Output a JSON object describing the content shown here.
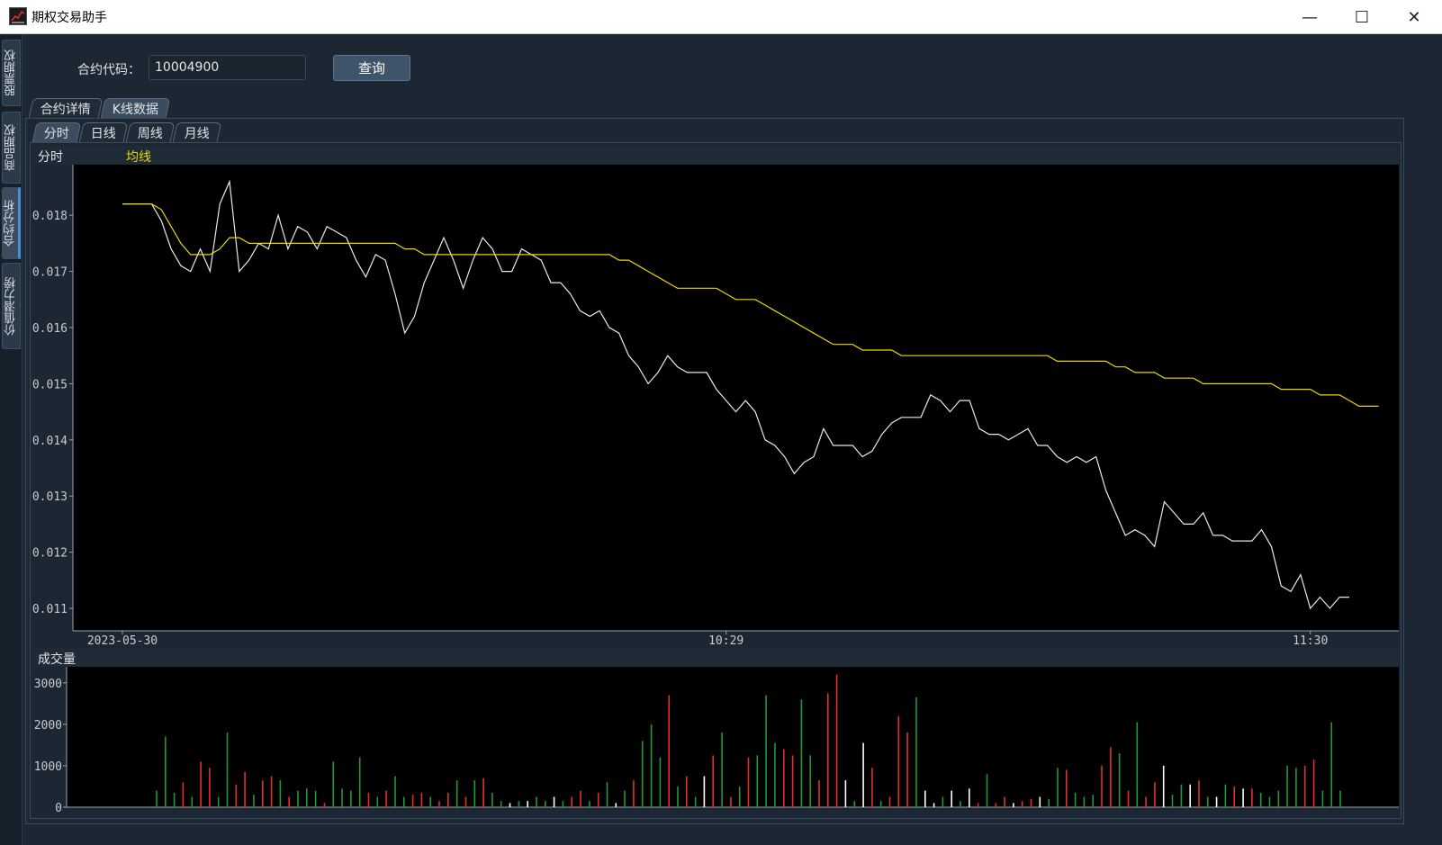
{
  "window": {
    "title": "期权交易助手",
    "minimize": "—",
    "maximize": "☐",
    "close": "✕"
  },
  "sidebar": {
    "tabs": [
      {
        "label": "股票期权",
        "active": false
      },
      {
        "label": "商品期权",
        "active": false
      },
      {
        "label": "合约分析",
        "active": true
      },
      {
        "label": "价值潜力榜",
        "active": false
      }
    ]
  },
  "query": {
    "label": "合约代码：",
    "value": "10004900",
    "button": "查询"
  },
  "outer_tabs": [
    {
      "label": "合约详情",
      "active": false
    },
    {
      "label": "K线数据",
      "active": true
    }
  ],
  "inner_tabs": [
    {
      "label": "分时",
      "active": true
    },
    {
      "label": "日线",
      "active": false
    },
    {
      "label": "周线",
      "active": false
    },
    {
      "label": "月线",
      "active": false
    }
  ],
  "colors": {
    "price": "#e8e8e8",
    "average": "#e8d800",
    "up": "#e23030",
    "down": "#1f9a3a",
    "flat": "#ffffff"
  },
  "chart_data": [
    {
      "type": "line",
      "title": "分时",
      "series": [
        {
          "name": "分时",
          "values": [
            0.0182,
            0.0182,
            0.0182,
            0.0182,
            0.0179,
            0.0174,
            0.0171,
            0.017,
            0.0174,
            0.017,
            0.0182,
            0.0186,
            0.017,
            0.0172,
            0.0175,
            0.0174,
            0.018,
            0.0174,
            0.0178,
            0.0177,
            0.0174,
            0.0178,
            0.0177,
            0.0176,
            0.0172,
            0.0169,
            0.0173,
            0.0172,
            0.0166,
            0.0159,
            0.0162,
            0.0168,
            0.0172,
            0.0176,
            0.0172,
            0.0167,
            0.0172,
            0.0176,
            0.0174,
            0.017,
            0.017,
            0.0174,
            0.0173,
            0.0172,
            0.0168,
            0.0168,
            0.0166,
            0.0163,
            0.0162,
            0.0163,
            0.016,
            0.0159,
            0.0155,
            0.0153,
            0.015,
            0.0152,
            0.0155,
            0.0153,
            0.0152,
            0.0152,
            0.0152,
            0.0149,
            0.0147,
            0.0145,
            0.0147,
            0.0145,
            0.014,
            0.0139,
            0.0137,
            0.0134,
            0.0136,
            0.0137,
            0.0142,
            0.0139,
            0.0139,
            0.0139,
            0.0137,
            0.0138,
            0.0141,
            0.0143,
            0.0144,
            0.0144,
            0.0144,
            0.0148,
            0.0147,
            0.0145,
            0.0147,
            0.0147,
            0.0142,
            0.0141,
            0.0141,
            0.014,
            0.0141,
            0.0142,
            0.0139,
            0.0139,
            0.0137,
            0.0136,
            0.0137,
            0.0136,
            0.0137,
            0.0131,
            0.0127,
            0.0123,
            0.0124,
            0.0123,
            0.0121,
            0.0129,
            0.0127,
            0.0125,
            0.0125,
            0.0127,
            0.0123,
            0.0123,
            0.0122,
            0.0122,
            0.0122,
            0.0124,
            0.0121,
            0.0114,
            0.0113,
            0.0116,
            0.011,
            0.0112,
            0.011,
            0.0112,
            0.0112
          ]
        },
        {
          "name": "均线",
          "values": [
            0.0182,
            0.0182,
            0.0182,
            0.0182,
            0.0181,
            0.0178,
            0.0175,
            0.0173,
            0.0173,
            0.0173,
            0.0174,
            0.0176,
            0.0176,
            0.0175,
            0.0175,
            0.0175,
            0.0175,
            0.0175,
            0.0175,
            0.0175,
            0.0175,
            0.0175,
            0.0175,
            0.0175,
            0.0175,
            0.0175,
            0.0175,
            0.0175,
            0.0175,
            0.0174,
            0.0174,
            0.0173,
            0.0173,
            0.0173,
            0.0173,
            0.0173,
            0.0173,
            0.0173,
            0.0173,
            0.0173,
            0.0173,
            0.0173,
            0.0173,
            0.0173,
            0.0173,
            0.0173,
            0.0173,
            0.0173,
            0.0173,
            0.0173,
            0.0173,
            0.0172,
            0.0172,
            0.0171,
            0.017,
            0.0169,
            0.0168,
            0.0167,
            0.0167,
            0.0167,
            0.0167,
            0.0167,
            0.0166,
            0.0165,
            0.0165,
            0.0165,
            0.0164,
            0.0163,
            0.0162,
            0.0161,
            0.016,
            0.0159,
            0.0158,
            0.0157,
            0.0157,
            0.0157,
            0.0156,
            0.0156,
            0.0156,
            0.0156,
            0.0155,
            0.0155,
            0.0155,
            0.0155,
            0.0155,
            0.0155,
            0.0155,
            0.0155,
            0.0155,
            0.0155,
            0.0155,
            0.0155,
            0.0155,
            0.0155,
            0.0155,
            0.0155,
            0.0154,
            0.0154,
            0.0154,
            0.0154,
            0.0154,
            0.0154,
            0.0153,
            0.0153,
            0.0152,
            0.0152,
            0.0152,
            0.0151,
            0.0151,
            0.0151,
            0.0151,
            0.015,
            0.015,
            0.015,
            0.015,
            0.015,
            0.015,
            0.015,
            0.015,
            0.0149,
            0.0149,
            0.0149,
            0.0149,
            0.0148,
            0.0148,
            0.0148,
            0.0147,
            0.0146,
            0.0146,
            0.0146
          ]
        }
      ],
      "ylim": [
        0.0106,
        0.0189
      ],
      "y_ticks": [
        0.011,
        0.012,
        0.013,
        0.014,
        0.015,
        0.016,
        0.017,
        0.018
      ],
      "y_tick_labels": [
        "0.011",
        "0.012",
        "0.013",
        "0.014",
        "0.015",
        "0.016",
        "0.017",
        "0.018"
      ],
      "x_tick_labels": [
        {
          "index": 0,
          "label": "2023-05-30"
        },
        {
          "index": 62,
          "label": "10:29"
        },
        {
          "index": 122,
          "label": "11:30"
        }
      ]
    },
    {
      "type": "bar",
      "title": "成交量",
      "values": [
        400,
        1700,
        350,
        600,
        250,
        1100,
        950,
        250,
        1800,
        550,
        850,
        300,
        650,
        750,
        650,
        250,
        400,
        450,
        400,
        100,
        1100,
        450,
        400,
        1200,
        350,
        250,
        400,
        750,
        250,
        300,
        350,
        250,
        150,
        350,
        650,
        250,
        650,
        700,
        350,
        150,
        100,
        150,
        150,
        250,
        150,
        250,
        150,
        250,
        400,
        150,
        350,
        600,
        100,
        400,
        650,
        1600,
        2000,
        1200,
        2700,
        500,
        750,
        250,
        750,
        1250,
        1800,
        250,
        500,
        1200,
        1250,
        2700,
        1550,
        1400,
        1250,
        2600,
        1250,
        650,
        2750,
        3200,
        650,
        150,
        1550,
        950,
        150,
        250,
        2200,
        1800,
        2650,
        400,
        100,
        250,
        400,
        150,
        450,
        100,
        800,
        100,
        250,
        100,
        150,
        200,
        250,
        200,
        950,
        900,
        350,
        250,
        300,
        1000,
        1450,
        1300,
        400,
        2050,
        250,
        600,
        1000,
        300,
        550,
        550,
        650,
        250,
        250,
        550,
        500,
        450,
        450,
        350,
        250,
        400,
        1000,
        950,
        1000,
        1150,
        400,
        2050,
        400
      ],
      "colors": [
        "down",
        "down",
        "down",
        "up",
        "down",
        "up",
        "up",
        "down",
        "down",
        "up",
        "up",
        "down",
        "up",
        "up",
        "down",
        "up",
        "down",
        "down",
        "down",
        "up",
        "down",
        "down",
        "down",
        "down",
        "up",
        "down",
        "up",
        "down",
        "down",
        "up",
        "up",
        "down",
        "up",
        "up",
        "down",
        "up",
        "down",
        "up",
        "down",
        "down",
        "flat",
        "down",
        "flat",
        "down",
        "down",
        "flat",
        "down",
        "up",
        "up",
        "down",
        "up",
        "down",
        "flat",
        "down",
        "up",
        "down",
        "down",
        "down",
        "up",
        "down",
        "up",
        "down",
        "flat",
        "up",
        "down",
        "up",
        "down",
        "up",
        "down",
        "down",
        "down",
        "up",
        "up",
        "down",
        "down",
        "up",
        "up",
        "up",
        "flat",
        "down",
        "flat",
        "up",
        "down",
        "up",
        "up",
        "up",
        "down",
        "flat",
        "flat",
        "down",
        "flat",
        "down",
        "flat",
        "up",
        "down",
        "up",
        "up",
        "flat",
        "up",
        "up",
        "flat",
        "down",
        "down",
        "up",
        "down",
        "down",
        "down",
        "up",
        "up",
        "down",
        "up",
        "down",
        "up",
        "up",
        "flat",
        "down",
        "down",
        "flat",
        "up",
        "down",
        "flat",
        "down",
        "up",
        "flat",
        "up",
        "down",
        "down",
        "down",
        "down",
        "down",
        "up",
        "up",
        "down"
      ],
      "ylim": [
        0,
        3300
      ],
      "y_ticks": [
        0,
        1000,
        2000,
        3000
      ],
      "y_tick_labels": [
        "0",
        "1000",
        "2000",
        "3000"
      ]
    }
  ]
}
